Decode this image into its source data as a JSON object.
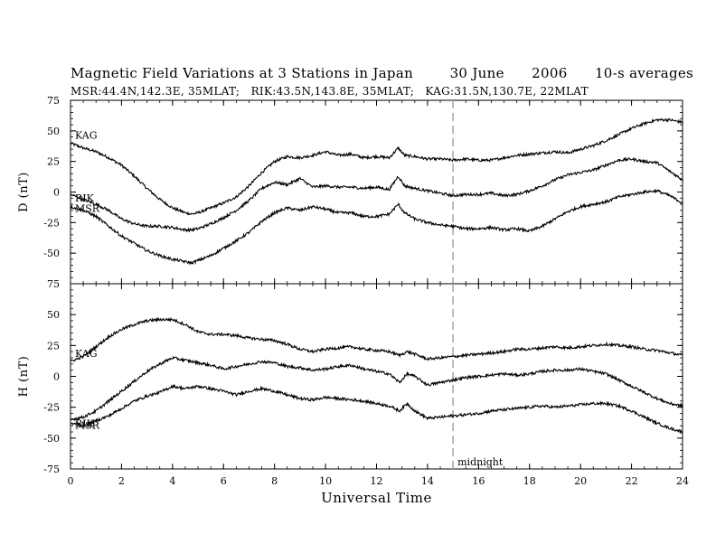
{
  "title": "Magnetic Field Variations at 3 Stations in Japan        30 June      2006      10-s averages",
  "subtitle": "MSR:44.4N,142.3E, 35MLAT;   RIK:43.5N,143.8E, 35MLAT;   KAG:31.5N,130.7E, 22MLAT",
  "chart_data": {
    "type": "line",
    "xlabel": "Universal Time",
    "xlim": [
      0,
      24
    ],
    "xticks": [
      "0",
      "2",
      "4",
      "6",
      "8",
      "10",
      "12",
      "14",
      "16",
      "18",
      "20",
      "22",
      "24"
    ],
    "annotation": "midnight",
    "midnight_ut": 15,
    "panels": [
      {
        "ylabel": "D (nT)",
        "ylim": [
          -75,
          75
        ],
        "yticks": [
          "75",
          "50",
          "25",
          "0",
          "-25",
          "-50",
          "-75"
        ],
        "labels": [
          "KAG",
          "RIK",
          "MSR"
        ],
        "series": [
          {
            "name": "KAG",
            "x": [
              0,
              0.5,
              1,
              1.5,
              2,
              2.5,
              3,
              3.5,
              4,
              4.5,
              4.75,
              5,
              5.5,
              6,
              6.5,
              7,
              7.5,
              8,
              8.5,
              9,
              9.5,
              10,
              10.5,
              11,
              11.5,
              12,
              12.5,
              12.85,
              13.1,
              13.5,
              14,
              14.5,
              15,
              15.5,
              16,
              16.5,
              17,
              17.5,
              18,
              18.5,
              19,
              19.5,
              20,
              20.5,
              21,
              21.5,
              22,
              22.5,
              23,
              23.5,
              24
            ],
            "y": [
              40,
              36,
              33,
              28,
              22,
              13,
              3,
              -6,
              -13,
              -17,
              -18,
              -17,
              -13,
              -9,
              -4,
              5,
              16,
              25,
              29,
              28,
              30,
              33,
              30,
              31,
              28,
              29,
              28,
              36,
              30,
              29,
              27,
              27,
              26,
              27,
              26,
              26,
              28,
              30,
              31,
              32,
              33,
              32,
              35,
              38,
              42,
              47,
              52,
              56,
              59,
              59,
              57
            ]
          },
          {
            "name": "RIK",
            "x": [
              0,
              0.5,
              1,
              1.5,
              2,
              2.5,
              3,
              3.5,
              4,
              4.5,
              4.75,
              5,
              5.5,
              6,
              6.5,
              7,
              7.5,
              8,
              8.5,
              9,
              9.5,
              10,
              10.5,
              11,
              11.5,
              12,
              12.5,
              12.85,
              13.1,
              13.5,
              14,
              14.5,
              15,
              15.5,
              16,
              16.5,
              17,
              17.5,
              18,
              18.5,
              19,
              19.5,
              20,
              20.5,
              21,
              21.5,
              22,
              22.5,
              23,
              23.5,
              24
            ],
            "y": [
              -2,
              -6,
              -10,
              -15,
              -22,
              -26,
              -28,
              -28,
              -29,
              -31,
              -31,
              -30,
              -26,
              -21,
              -15,
              -7,
              3,
              8,
              6,
              11,
              4,
              5,
              4,
              4,
              3,
              4,
              2,
              13,
              5,
              3,
              1,
              -1,
              -3,
              -2,
              -2,
              -1,
              -3,
              -2,
              1,
              5,
              10,
              14,
              16,
              18,
              22,
              26,
              27,
              25,
              24,
              17,
              10
            ]
          },
          {
            "name": "MSR",
            "x": [
              0,
              0.5,
              1,
              1.5,
              2,
              2.5,
              3,
              3.5,
              4,
              4.5,
              4.75,
              5,
              5.5,
              6,
              6.5,
              7,
              7.5,
              8,
              8.5,
              9,
              9.5,
              10,
              10.5,
              11,
              11.5,
              12,
              12.5,
              12.85,
              13.1,
              13.5,
              14,
              14.5,
              15,
              15.5,
              16,
              16.5,
              17,
              17.5,
              18,
              18.5,
              19,
              19.5,
              20,
              20.5,
              21,
              21.5,
              22,
              22.5,
              23,
              23.5,
              24
            ],
            "y": [
              -12,
              -15,
              -20,
              -28,
              -36,
              -42,
              -48,
              -52,
              -55,
              -57,
              -58,
              -56,
              -52,
              -46,
              -40,
              -33,
              -24,
              -17,
              -13,
              -15,
              -12,
              -14,
              -17,
              -17,
              -20,
              -20,
              -18,
              -10,
              -17,
              -22,
              -25,
              -27,
              -28,
              -30,
              -30,
              -29,
              -31,
              -30,
              -32,
              -28,
              -22,
              -16,
              -12,
              -10,
              -8,
              -4,
              -2,
              0,
              1,
              -3,
              -9
            ]
          }
        ]
      },
      {
        "ylabel": "H (nT)",
        "ylim": [
          -75,
          75
        ],
        "yticks": [
          "75",
          "50",
          "25",
          "0",
          "-25",
          "-50",
          "-75"
        ],
        "labels": [
          "KAG",
          "RIK",
          "MSR"
        ],
        "series": [
          {
            "name": "KAG",
            "x": [
              0,
              0.5,
              1,
              1.5,
              2,
              2.5,
              3,
              3.5,
              4,
              4.5,
              5,
              5.5,
              6,
              6.5,
              7,
              7.5,
              8,
              8.5,
              9,
              9.5,
              10,
              10.5,
              11,
              11.5,
              12,
              12.5,
              12.9,
              13.2,
              13.5,
              14,
              14.5,
              15,
              15.5,
              16,
              16.5,
              17,
              17.5,
              18,
              18.5,
              19,
              19.5,
              20,
              20.5,
              21,
              21.5,
              22,
              22.5,
              23,
              23.5,
              24
            ],
            "y": [
              12,
              16,
              24,
              32,
              38,
              42,
              45,
              46,
              46,
              42,
              36,
              34,
              34,
              33,
              31,
              30,
              29,
              26,
              22,
              20,
              22,
              23,
              24,
              22,
              21,
              20,
              17,
              20,
              18,
              14,
              15,
              16,
              17,
              18,
              19,
              20,
              22,
              22,
              23,
              24,
              23,
              24,
              25,
              26,
              25,
              24,
              22,
              21,
              19,
              17
            ]
          },
          {
            "name": "RIK",
            "x": [
              0,
              0.5,
              1,
              1.5,
              2,
              2.5,
              3,
              3.5,
              4,
              4.5,
              5,
              5.5,
              6,
              6.5,
              7,
              7.5,
              8,
              8.5,
              9,
              9.5,
              10,
              10.5,
              11,
              11.5,
              12,
              12.5,
              12.9,
              13.2,
              13.5,
              14,
              14.5,
              15,
              15.5,
              16,
              16.5,
              17,
              17.5,
              18,
              18.5,
              19,
              19.5,
              20,
              20.5,
              21,
              21.5,
              22,
              22.5,
              23,
              23.5,
              24
            ],
            "y": [
              -35,
              -33,
              -28,
              -20,
              -12,
              -4,
              4,
              10,
              15,
              13,
              11,
              9,
              6,
              8,
              10,
              12,
              11,
              8,
              7,
              5,
              6,
              8,
              9,
              6,
              4,
              2,
              -5,
              2,
              0,
              -7,
              -5,
              -3,
              -1,
              0,
              1,
              2,
              1,
              2,
              4,
              5,
              5,
              6,
              4,
              2,
              -3,
              -8,
              -13,
              -18,
              -22,
              -24
            ]
          },
          {
            "name": "MSR",
            "x": [
              0,
              0.5,
              1,
              1.5,
              2,
              2.5,
              3,
              3.5,
              4,
              4.5,
              5,
              5.5,
              6,
              6.5,
              7,
              7.5,
              8,
              8.5,
              9,
              9.5,
              10,
              10.5,
              11,
              11.5,
              12,
              12.5,
              12.9,
              13.2,
              13.5,
              14,
              14.5,
              15,
              15.5,
              16,
              16.5,
              17,
              17.5,
              18,
              18.5,
              19,
              19.5,
              20,
              20.5,
              21,
              21.5,
              22,
              22.5,
              23,
              23.5,
              24
            ],
            "y": [
              -38,
              -40,
              -36,
              -32,
              -26,
              -20,
              -16,
              -13,
              -8,
              -10,
              -8,
              -10,
              -12,
              -15,
              -12,
              -10,
              -12,
              -15,
              -18,
              -19,
              -17,
              -18,
              -19,
              -20,
              -22,
              -24,
              -28,
              -22,
              -28,
              -34,
              -33,
              -32,
              -31,
              -30,
              -28,
              -27,
              -26,
              -25,
              -24,
              -25,
              -24,
              -23,
              -22,
              -22,
              -24,
              -28,
              -33,
              -38,
              -42,
              -45
            ]
          }
        ]
      }
    ]
  }
}
